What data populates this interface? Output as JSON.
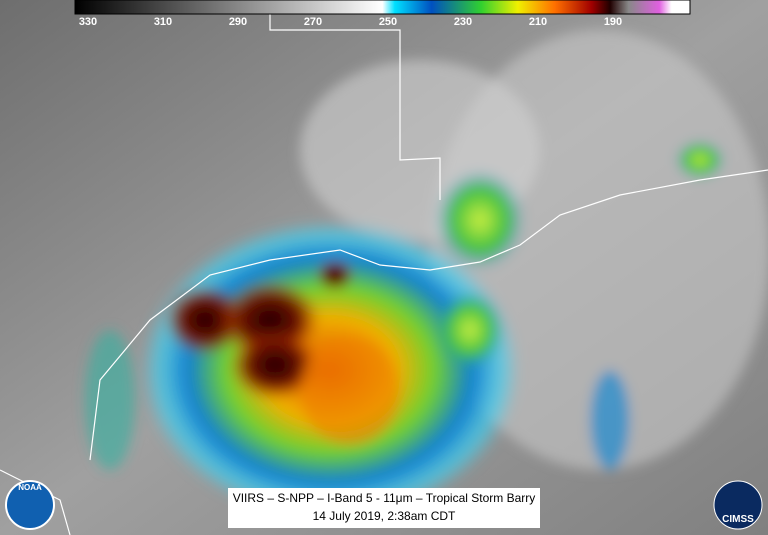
{
  "colorbar": {
    "ticks": [
      330,
      310,
      290,
      270,
      250,
      230,
      210,
      190
    ]
  },
  "caption": {
    "line1": "VIIRS – S-NPP – I-Band 5 - 11μm – Tropical Storm Barry",
    "line2": "14 July 2019, 2:38am CDT"
  },
  "logos": {
    "left": "NOAA",
    "right": "CIMSS"
  }
}
